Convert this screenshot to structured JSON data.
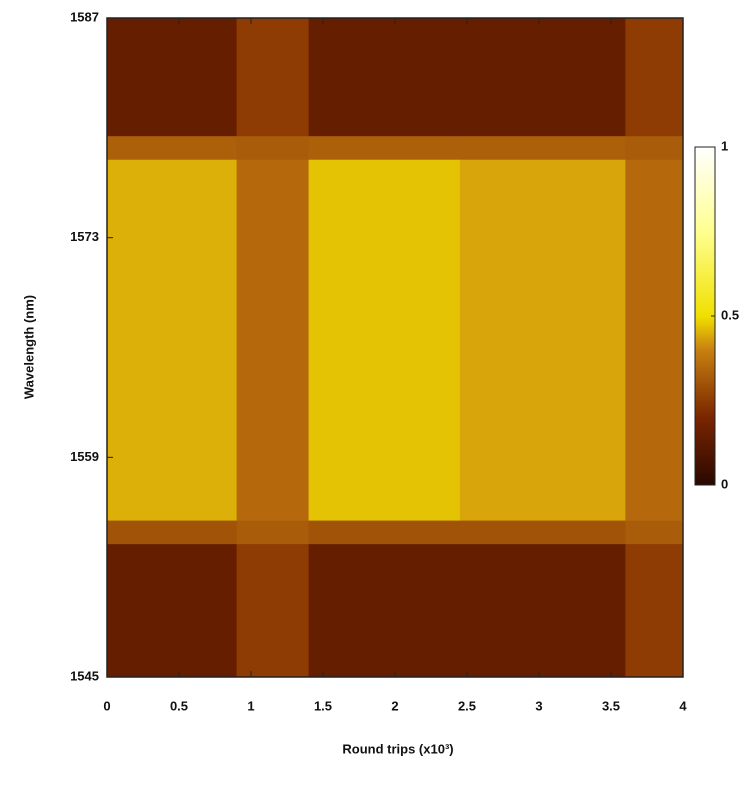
{
  "chart_data": {
    "type": "heatmap",
    "x_label": "Round trips (x10³)",
    "y_label": "Wavelength (nm)",
    "x_edges": [
      0,
      0.9,
      1.4,
      2.45,
      3.6,
      4
    ],
    "y_edges": [
      1545,
      1553.5,
      1555,
      1578,
      1579.5,
      1587
    ],
    "z": [
      [
        0.15,
        0.25,
        0.15,
        0.15,
        0.25
      ],
      [
        0.3,
        0.32,
        0.3,
        0.3,
        0.32
      ],
      [
        0.45,
        0.35,
        0.47,
        0.44,
        0.35
      ],
      [
        0.33,
        0.32,
        0.33,
        0.33,
        0.32
      ],
      [
        0.15,
        0.25,
        0.15,
        0.15,
        0.25
      ]
    ],
    "xlim": [
      0,
      4
    ],
    "xticks": [
      0,
      0.5,
      1,
      1.5,
      2,
      2.5,
      3,
      3.5,
      4
    ],
    "ylim": [
      1545,
      1587
    ],
    "yticks": [
      1545,
      1559,
      1573,
      1587
    ],
    "zlim": [
      0,
      1
    ],
    "zticks": [
      0,
      0.5,
      1
    ],
    "colorscale": [
      [
        0,
        "#2a0800"
      ],
      [
        0.2,
        "#7a2500"
      ],
      [
        0.4,
        "#c88010"
      ],
      [
        0.5,
        "#f0e000"
      ],
      [
        0.75,
        "#ffff90"
      ],
      [
        1,
        "#ffffff"
      ]
    ]
  }
}
